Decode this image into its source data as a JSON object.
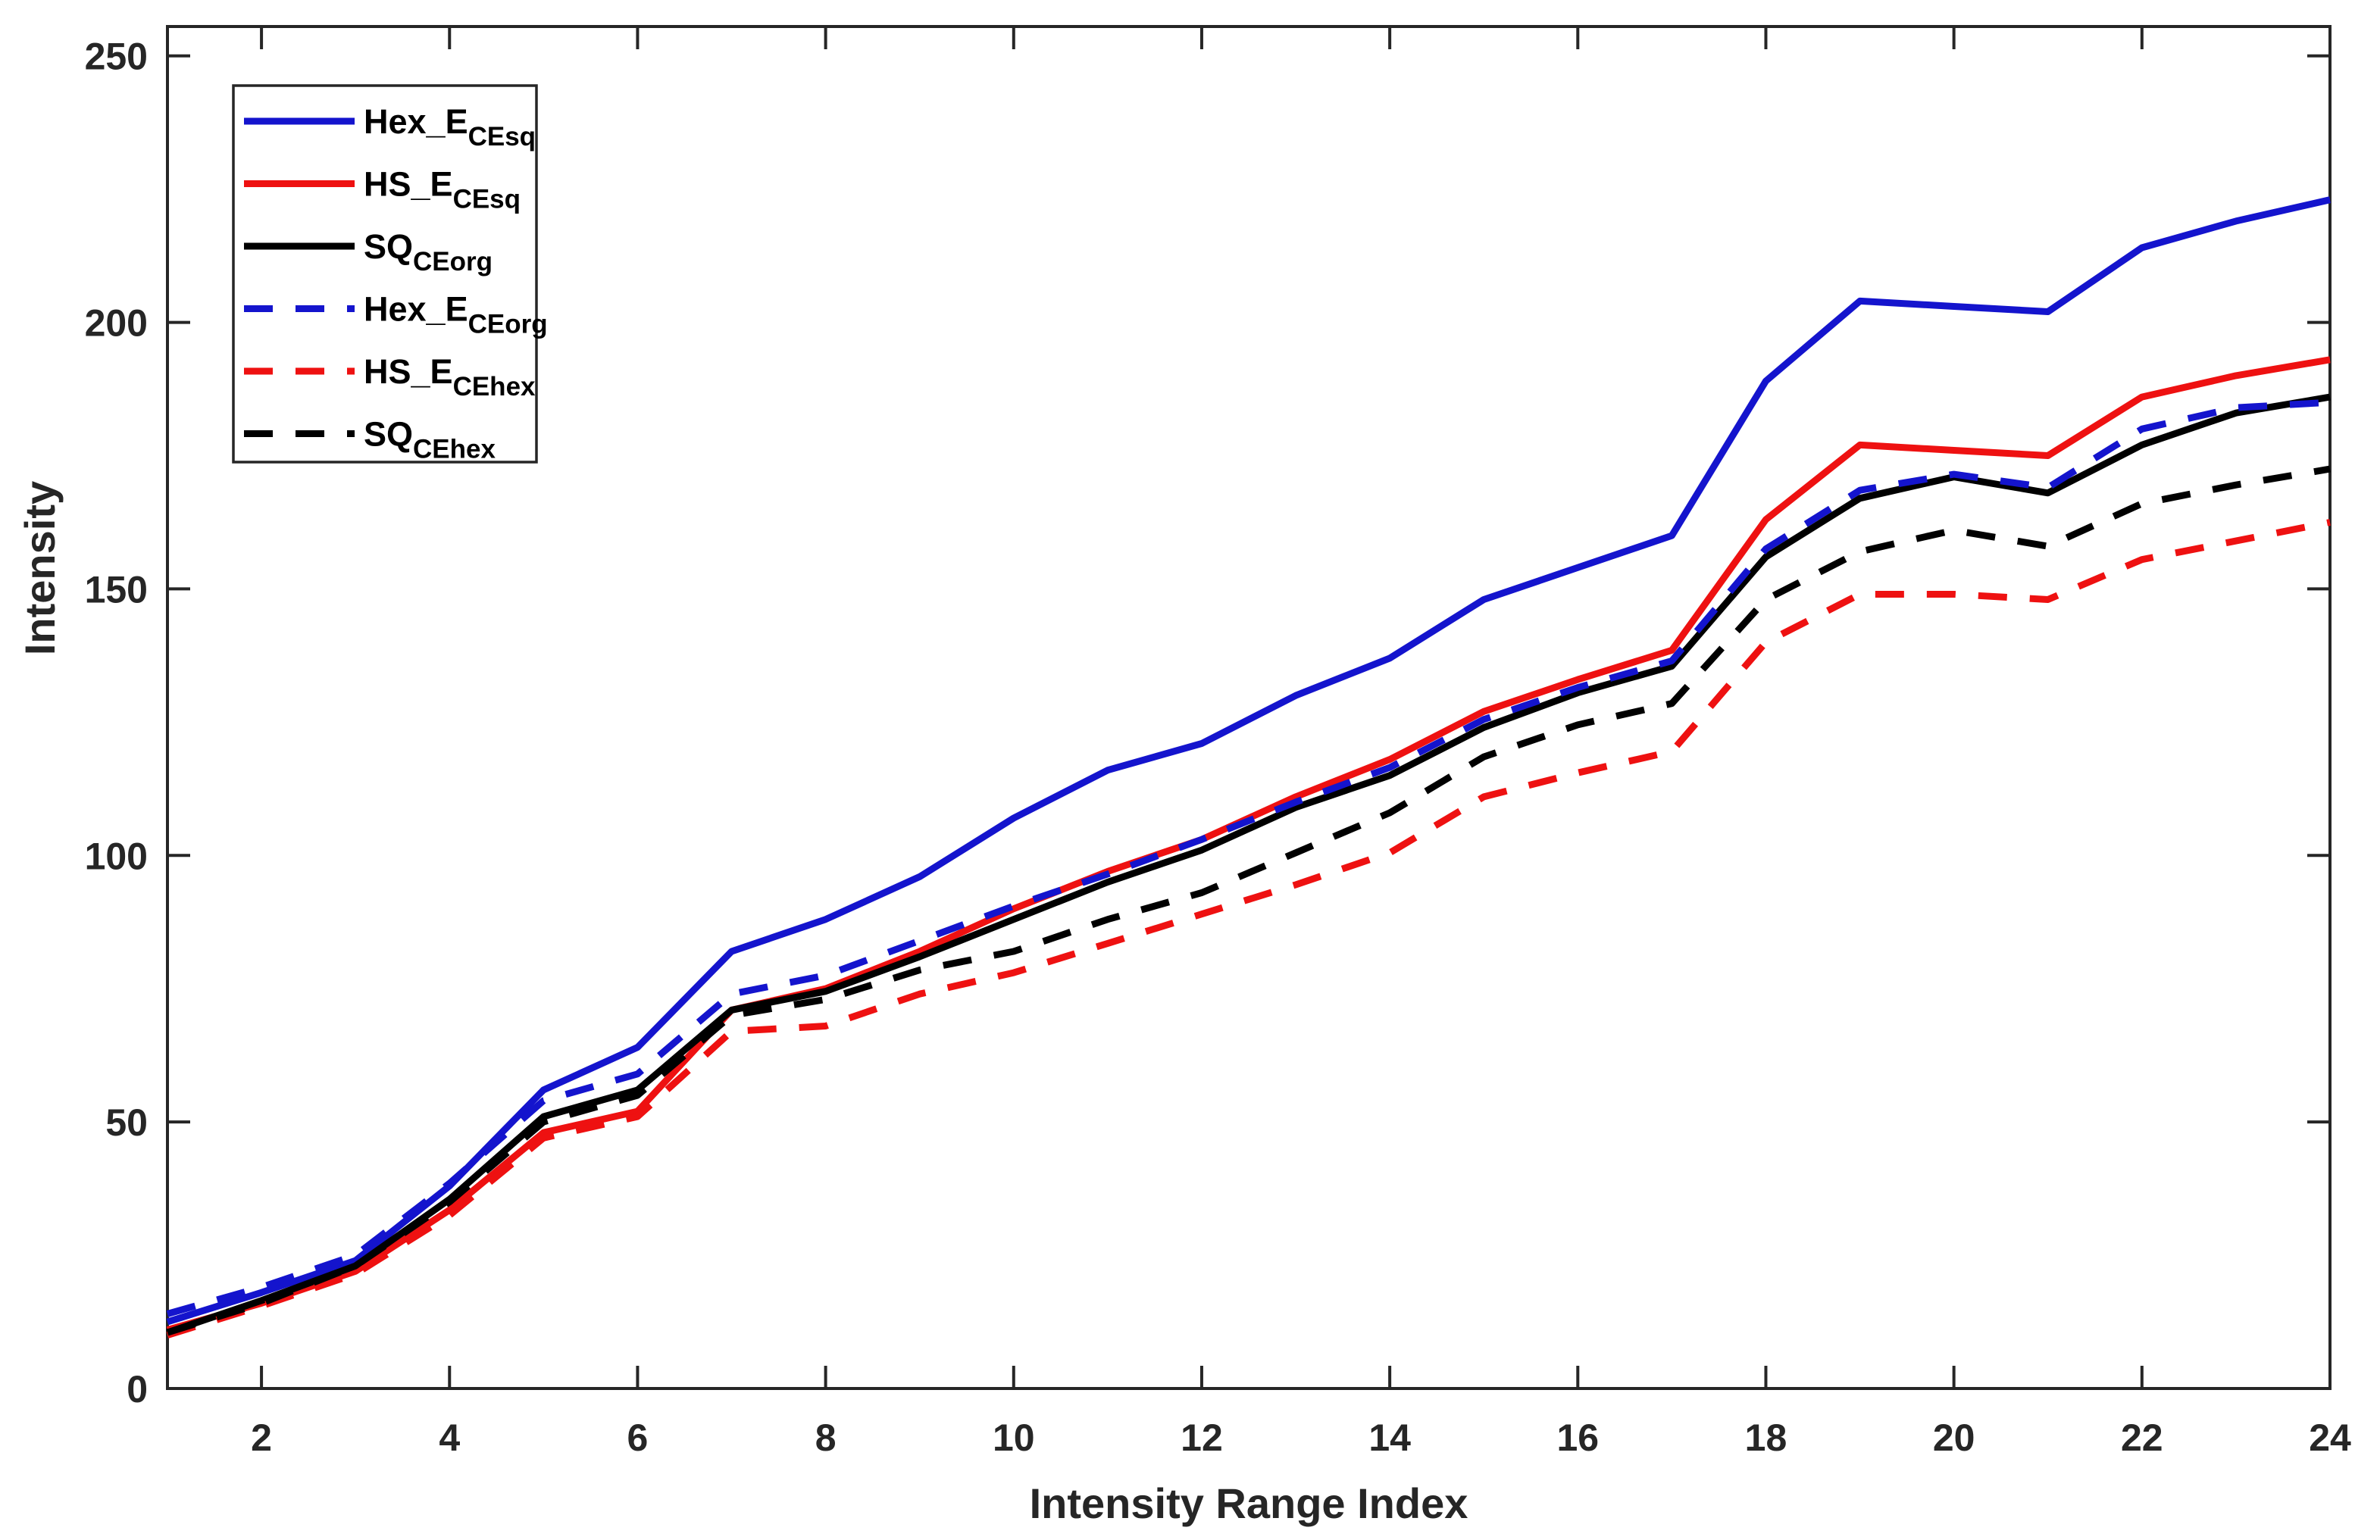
{
  "figure": {
    "background": "#ffffff",
    "axis_color": "#262626"
  },
  "chart_data": {
    "type": "line",
    "title": "",
    "xlabel": "Intensity Range Index",
    "ylabel": "Intensity",
    "xlim": [
      1,
      24
    ],
    "ylim": [
      0,
      255.5
    ],
    "x_ticks": [
      2,
      4,
      6,
      8,
      10,
      12,
      14,
      16,
      18,
      20,
      22,
      24
    ],
    "y_ticks": [
      0,
      50,
      100,
      150,
      200,
      250
    ],
    "grid": false,
    "legend_position": "top-left",
    "x": [
      1,
      2,
      3,
      4,
      5,
      6,
      7,
      8,
      9,
      10,
      11,
      12,
      13,
      14,
      15,
      16,
      17,
      18,
      19,
      20,
      21,
      22,
      23,
      24
    ],
    "series": [
      {
        "name": "Hex_E_CEsq",
        "label_main": "Hex_E",
        "label_sub": "CEsq",
        "color": "#1414CD",
        "style": "solid",
        "values": [
          12.5,
          18,
          24,
          38,
          56,
          64,
          82,
          88,
          96,
          107,
          116,
          121,
          130,
          137,
          148,
          154,
          160,
          189,
          204,
          203,
          202,
          214,
          219,
          223
        ]
      },
      {
        "name": "HS_E_CEsq",
        "label_main": "HS_E",
        "label_sub": "CEsq",
        "color": "#EE1111",
        "style": "solid",
        "values": [
          11,
          16,
          22,
          33.5,
          48,
          52,
          71,
          75,
          82,
          90,
          97,
          103,
          111,
          118,
          127,
          133,
          138.5,
          163,
          177,
          176,
          175,
          186,
          190,
          193
        ]
      },
      {
        "name": "SQ_CEorg",
        "label_main": "SQ",
        "label_sub": "CEorg",
        "color": "#000000",
        "style": "solid",
        "values": [
          10.5,
          16.5,
          23,
          35.5,
          51,
          56,
          71,
          74.5,
          81,
          88,
          95,
          101,
          109,
          115,
          124,
          130.5,
          135.5,
          156,
          167,
          171,
          168,
          177,
          183,
          186
        ]
      },
      {
        "name": "Hex_E_CEorg",
        "label_main": "Hex_E",
        "label_sub": "CEorg",
        "color": "#1414CD",
        "style": "dashed",
        "values": [
          14,
          19,
          25,
          38.5,
          54,
          59,
          74,
          77.5,
          84,
          90.5,
          96.5,
          103,
          110,
          116.5,
          125.5,
          131.5,
          136.5,
          157.5,
          168.5,
          171.5,
          169,
          180,
          184,
          185
        ]
      },
      {
        "name": "HS_E_CEhex",
        "label_main": "HS_E",
        "label_sub": "CEhex",
        "color": "#EE1111",
        "style": "dashed",
        "values": [
          10,
          15.5,
          21.5,
          32.5,
          47,
          51,
          67,
          68,
          74,
          78,
          83.5,
          89,
          94.5,
          100.5,
          111,
          115.5,
          119.5,
          140,
          149,
          149,
          148,
          155.5,
          159,
          162.5
        ]
      },
      {
        "name": "SQ_CEhex",
        "label_main": "SQ",
        "label_sub": "CEhex",
        "color": "#000000",
        "style": "dashed",
        "values": [
          10.5,
          16,
          23,
          35,
          50,
          55,
          70,
          73,
          78.5,
          82,
          88,
          93,
          100.5,
          108,
          118.5,
          124.5,
          128.5,
          148,
          157,
          161,
          158,
          166,
          169.5,
          172.5
        ]
      }
    ]
  }
}
